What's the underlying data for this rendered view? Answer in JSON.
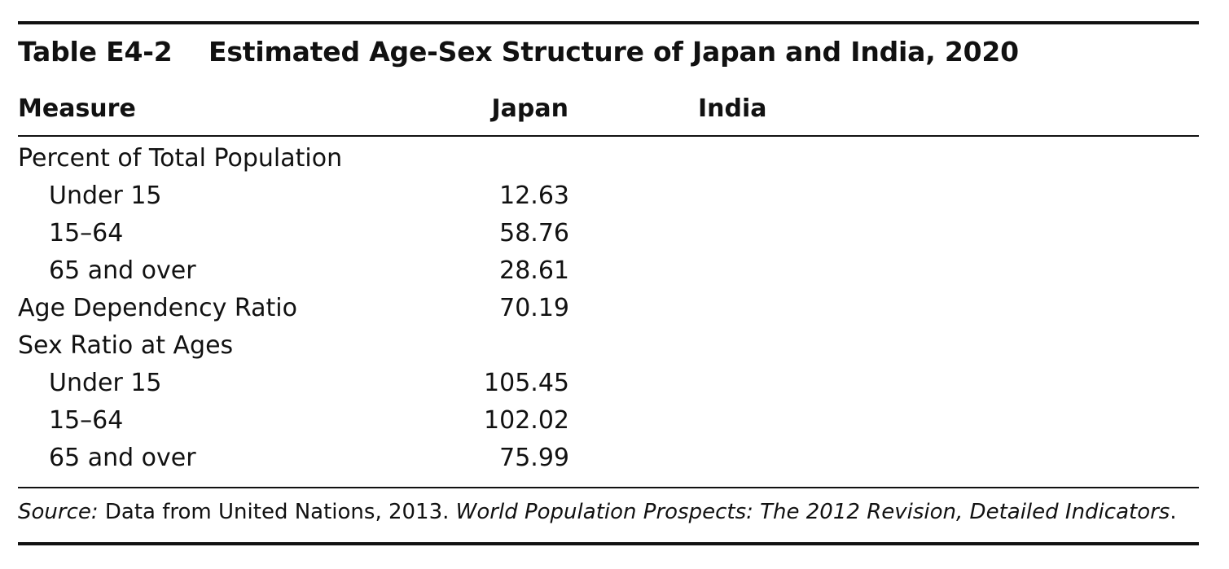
{
  "table": {
    "label": "Table E4-2",
    "title": "Estimated Age-Sex Structure of Japan and India, 2020",
    "columns": {
      "measure": "Measure",
      "japan": "Japan",
      "india": "India"
    },
    "rows": [
      {
        "measure": "Percent of Total Population",
        "japan": "",
        "india": ""
      },
      {
        "measure": "Under 15",
        "japan": "12.63",
        "india": ""
      },
      {
        "measure": "15–64",
        "japan": "58.76",
        "india": ""
      },
      {
        "measure": "65 and over",
        "japan": "28.61",
        "india": ""
      },
      {
        "measure": "Age Dependency Ratio",
        "japan": "70.19",
        "india": ""
      },
      {
        "measure": "Sex Ratio at Ages",
        "japan": "",
        "india": ""
      },
      {
        "measure": "Under 15",
        "japan": "105.45",
        "india": ""
      },
      {
        "measure": "15–64",
        "japan": "102.02",
        "india": ""
      },
      {
        "measure": "65 and over",
        "japan": "75.99",
        "india": ""
      }
    ],
    "source": {
      "label": "Source:",
      "text": " Data from United Nations, 2013. ",
      "publication": "World Population Prospects: The 2012 Revision, Detailed Indicators",
      "end": "."
    }
  }
}
